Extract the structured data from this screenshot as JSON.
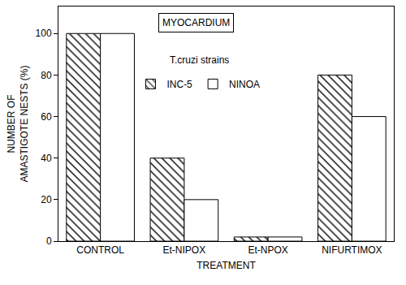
{
  "chart_data": {
    "type": "bar",
    "title": "MYOCARDIUM",
    "x_label": "TREATMENT",
    "y_label": "NUMBER OF\nAMASTIGOTE NESTS (%)",
    "annotations": [
      "T.cruzi strains"
    ],
    "categories": [
      "CONTROL",
      "Et-NIPOX",
      "Et-NPOX",
      "NIFURTIMOX"
    ],
    "series": [
      {
        "name": "INC-5",
        "color": "#ffffff",
        "marker": "hatch",
        "values": [
          100,
          40,
          2,
          80
        ]
      },
      {
        "name": "NINOA",
        "color": "#ffffff",
        "marker": "plain",
        "values": [
          100,
          20,
          2,
          60
        ]
      }
    ],
    "ylim": [
      0,
      113
    ],
    "yticks": [
      0,
      20,
      40,
      60,
      80,
      100
    ],
    "grid": false,
    "legend": "top"
  }
}
